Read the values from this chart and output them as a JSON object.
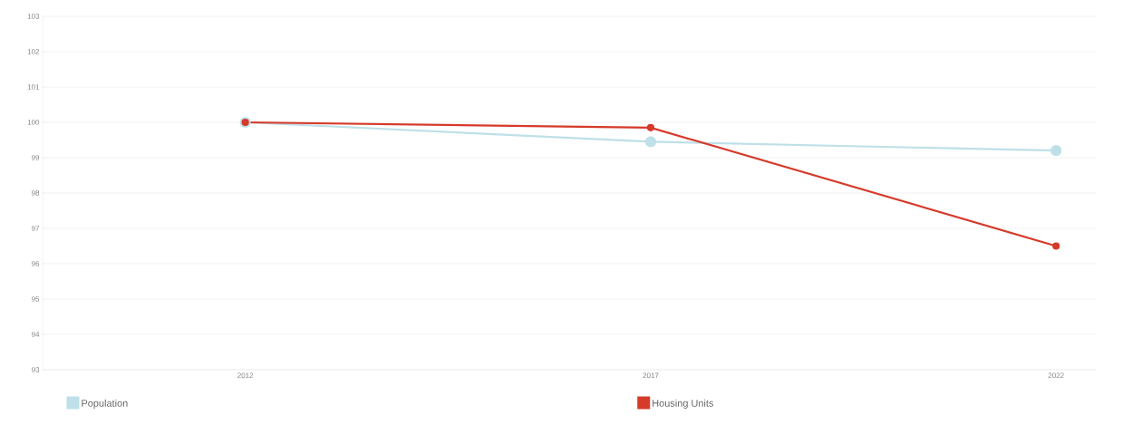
{
  "chart_data": {
    "type": "line",
    "categories": [
      "2012",
      "2017",
      "2022"
    ],
    "series": [
      {
        "name": "Population",
        "color": "#bfe0e8",
        "values": [
          100,
          99.45,
          99.2
        ]
      },
      {
        "name": "Housing Units",
        "color": "#d63a2a",
        "values": [
          100,
          99.85,
          96.5
        ]
      }
    ],
    "ylim": [
      93,
      103
    ],
    "yticks": [
      93,
      94,
      95,
      96,
      97,
      98,
      99,
      100,
      101,
      102,
      103
    ],
    "grid": "y",
    "legend": "bottom",
    "marker": "circle",
    "line_style": "solid"
  }
}
